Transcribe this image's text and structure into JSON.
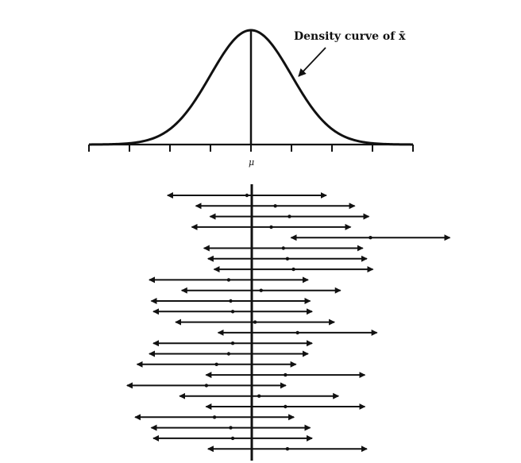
{
  "figure": {
    "curve_label": "Density curve of x̄",
    "mu_label": "μ"
  },
  "chart_data": {
    "type": "interval",
    "density_curve": {
      "mean": 0,
      "sd": 1,
      "x_range": [
        -4,
        4
      ]
    },
    "axis": {
      "tick_count": 9,
      "center_label": "μ"
    },
    "intervals": [
      {
        "center": -0.1,
        "half_width": 1.96
      },
      {
        "center": 0.6,
        "half_width": 1.96
      },
      {
        "center": 0.95,
        "half_width": 1.96
      },
      {
        "center": 0.5,
        "half_width": 1.96
      },
      {
        "center": 2.95,
        "half_width": 1.96
      },
      {
        "center": 0.8,
        "half_width": 1.96
      },
      {
        "center": 0.9,
        "half_width": 1.96
      },
      {
        "center": 1.05,
        "half_width": 1.96
      },
      {
        "center": -0.55,
        "half_width": 1.96
      },
      {
        "center": 0.25,
        "half_width": 1.96
      },
      {
        "center": -0.5,
        "half_width": 1.96
      },
      {
        "center": -0.45,
        "half_width": 1.96
      },
      {
        "center": 0.1,
        "half_width": 1.96
      },
      {
        "center": 1.15,
        "half_width": 1.96
      },
      {
        "center": -0.45,
        "half_width": 1.96
      },
      {
        "center": -0.55,
        "half_width": 1.96
      },
      {
        "center": -0.85,
        "half_width": 1.96
      },
      {
        "center": 0.85,
        "half_width": 1.96
      },
      {
        "center": -1.1,
        "half_width": 1.96
      },
      {
        "center": 0.2,
        "half_width": 1.96
      },
      {
        "center": 0.85,
        "half_width": 1.96
      },
      {
        "center": -0.9,
        "half_width": 1.96
      },
      {
        "center": -0.5,
        "half_width": 1.96
      },
      {
        "center": -0.45,
        "half_width": 1.96
      },
      {
        "center": 0.9,
        "half_width": 1.96
      }
    ]
  }
}
